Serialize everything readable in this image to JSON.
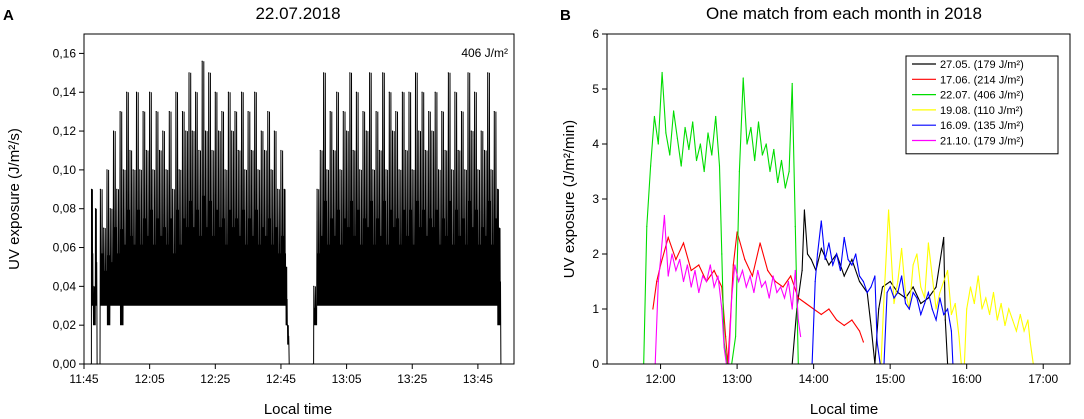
{
  "panels": [
    {
      "letter": "A",
      "title": "22.07.2018",
      "annotation": "406 J/m²",
      "xlabel": "Local time",
      "ylabel": "UV exposure (J/m²/s)"
    },
    {
      "letter": "B",
      "title": "One match from each month in 2018",
      "xlabel": "Local time",
      "ylabel": "UV exposure (J/m²/min)"
    }
  ],
  "chart_data": [
    {
      "type": "line",
      "title": "22.07.2018",
      "xlabel": "Local time",
      "ylabel": "UV exposure (J/m²/s)",
      "annotation": "406 J/m²",
      "x_unit": "minutes after 11:45",
      "xlim": [
        0,
        131
      ],
      "ylim": [
        0,
        0.17
      ],
      "x_ticks": [
        {
          "x": 0,
          "label": "11:45"
        },
        {
          "x": 20,
          "label": "12:05"
        },
        {
          "x": 40,
          "label": "12:25"
        },
        {
          "x": 60,
          "label": "12:45"
        },
        {
          "x": 80,
          "label": "13:05"
        },
        {
          "x": 100,
          "label": "13:25"
        },
        {
          "x": 120,
          "label": "13:45"
        }
      ],
      "y_ticks": [
        {
          "y": 0,
          "label": "0,00"
        },
        {
          "y": 0.02,
          "label": "0,02"
        },
        {
          "y": 0.04,
          "label": "0,04"
        },
        {
          "y": 0.06,
          "label": "0,06"
        },
        {
          "y": 0.08,
          "label": "0,08"
        },
        {
          "y": 0.1,
          "label": "0,10"
        },
        {
          "y": 0.12,
          "label": "0,12"
        },
        {
          "y": 0.14,
          "label": "0,14"
        },
        {
          "y": 0.16,
          "label": "0,16"
        }
      ],
      "color": "#000000",
      "series": [
        {
          "x": [
            2,
            2.3,
            2.8,
            3.5,
            4,
            5,
            6,
            7,
            8,
            9,
            10,
            11,
            12,
            13,
            14,
            15,
            16,
            17,
            18,
            19,
            20,
            21,
            22,
            23,
            24,
            25,
            26,
            27,
            28,
            29,
            30,
            31,
            32,
            33,
            34,
            35,
            36,
            37,
            38,
            39,
            40,
            41,
            42,
            43,
            44,
            45,
            46,
            47,
            48,
            49,
            50,
            51,
            52,
            53,
            54,
            55,
            56,
            57,
            58,
            59,
            60,
            61,
            61.5,
            62,
            62.5,
            69.5,
            70,
            71,
            72,
            73,
            74,
            75,
            76,
            77,
            78,
            79,
            80,
            81,
            82,
            83,
            84,
            85,
            86,
            87,
            88,
            89,
            90,
            91,
            92,
            93,
            94,
            95,
            96,
            97,
            98,
            99,
            100,
            101,
            102,
            103,
            104,
            105,
            106,
            107,
            108,
            109,
            110,
            111,
            112,
            113,
            114,
            115,
            116,
            117,
            118,
            119,
            120,
            121,
            122,
            123,
            124,
            125,
            126,
            126.5,
            127
          ],
          "y": [
            0.0,
            0.09,
            0.04,
            0.08,
            0.0,
            0.09,
            0.07,
            0.1,
            0.08,
            0.12,
            0.09,
            0.13,
            0.1,
            0.14,
            0.11,
            0.1,
            0.14,
            0.1,
            0.13,
            0.11,
            0.14,
            0.1,
            0.13,
            0.11,
            0.12,
            0.1,
            0.13,
            0.09,
            0.14,
            0.1,
            0.13,
            0.12,
            0.15,
            0.12,
            0.14,
            0.11,
            0.156,
            0.12,
            0.15,
            0.11,
            0.14,
            0.12,
            0.13,
            0.1,
            0.14,
            0.12,
            0.13,
            0.11,
            0.14,
            0.1,
            0.13,
            0.11,
            0.14,
            0.1,
            0.12,
            0.11,
            0.13,
            0.1,
            0.12,
            0.09,
            0.11,
            0.09,
            0.05,
            0.02,
            0.0,
            0.0,
            0.04,
            0.09,
            0.11,
            0.15,
            0.1,
            0.13,
            0.11,
            0.14,
            0.1,
            0.13,
            0.12,
            0.15,
            0.11,
            0.14,
            0.1,
            0.13,
            0.12,
            0.15,
            0.1,
            0.13,
            0.11,
            0.15,
            0.1,
            0.14,
            0.12,
            0.13,
            0.1,
            0.14,
            0.11,
            0.14,
            0.1,
            0.15,
            0.12,
            0.14,
            0.11,
            0.13,
            0.12,
            0.14,
            0.1,
            0.13,
            0.11,
            0.15,
            0.1,
            0.14,
            0.11,
            0.13,
            0.1,
            0.15,
            0.12,
            0.14,
            0.1,
            0.12,
            0.11,
            0.15,
            0.1,
            0.13,
            0.09,
            0.07,
            0.0
          ],
          "y_low": [
            0.0,
            0.03,
            0.02,
            0.03,
            0.0,
            0.03,
            0.03,
            0.02,
            0.03,
            0.03,
            0.03,
            0.02,
            0.03,
            0.03,
            0.03,
            0.03,
            0.03,
            0.03,
            0.03,
            0.03,
            0.03,
            0.03,
            0.03,
            0.03,
            0.03,
            0.03,
            0.03,
            0.03,
            0.03,
            0.03,
            0.03,
            0.03,
            0.03,
            0.03,
            0.03,
            0.03,
            0.03,
            0.03,
            0.03,
            0.03,
            0.03,
            0.03,
            0.03,
            0.03,
            0.03,
            0.03,
            0.03,
            0.03,
            0.03,
            0.03,
            0.03,
            0.03,
            0.03,
            0.03,
            0.03,
            0.03,
            0.03,
            0.03,
            0.03,
            0.03,
            0.03,
            0.03,
            0.02,
            0.01,
            0.0,
            0.0,
            0.02,
            0.03,
            0.03,
            0.03,
            0.03,
            0.03,
            0.03,
            0.03,
            0.03,
            0.03,
            0.03,
            0.03,
            0.03,
            0.03,
            0.03,
            0.03,
            0.03,
            0.03,
            0.03,
            0.03,
            0.03,
            0.03,
            0.03,
            0.03,
            0.03,
            0.03,
            0.03,
            0.03,
            0.03,
            0.03,
            0.03,
            0.03,
            0.03,
            0.03,
            0.03,
            0.03,
            0.03,
            0.03,
            0.03,
            0.03,
            0.03,
            0.03,
            0.03,
            0.03,
            0.03,
            0.03,
            0.03,
            0.03,
            0.03,
            0.03,
            0.03,
            0.03,
            0.03,
            0.03,
            0.03,
            0.03,
            0.02,
            0.02,
            0.0
          ]
        }
      ]
    },
    {
      "type": "line",
      "title": "One match from each month in 2018",
      "xlabel": "Local time",
      "ylabel": "UV exposure (J/m²/min)",
      "x_unit": "hour of day",
      "xlim": [
        11.3,
        17.35
      ],
      "ylim": [
        0,
        6
      ],
      "x_ticks": [
        {
          "x": 12,
          "label": "12:00"
        },
        {
          "x": 13,
          "label": "13:00"
        },
        {
          "x": 14,
          "label": "14:00"
        },
        {
          "x": 15,
          "label": "15:00"
        },
        {
          "x": 16,
          "label": "16:00"
        },
        {
          "x": 17,
          "label": "17:00"
        }
      ],
      "y_ticks": [
        {
          "y": 0,
          "label": "0"
        },
        {
          "y": 1,
          "label": "1"
        },
        {
          "y": 2,
          "label": "2"
        },
        {
          "y": 3,
          "label": "3"
        },
        {
          "y": 4,
          "label": "4"
        },
        {
          "y": 5,
          "label": "5"
        },
        {
          "y": 6,
          "label": "6"
        }
      ],
      "legend_position": "top-right",
      "series": [
        {
          "name": "27.05. (179 J/m²)",
          "color": "#000000",
          "x": [
            13.72,
            13.78,
            13.85,
            13.88,
            13.92,
            13.97,
            14.03,
            14.1,
            14.2,
            14.3,
            14.4,
            14.5,
            14.6,
            14.7,
            14.75,
            14.8,
            14.85,
            14.9,
            15.0,
            15.1,
            15.2,
            15.3,
            15.4,
            15.5,
            15.6,
            15.7,
            15.72,
            15.75
          ],
          "y": [
            0.0,
            1.0,
            1.7,
            2.8,
            2.0,
            1.9,
            1.7,
            2.1,
            1.8,
            2.0,
            1.6,
            1.9,
            1.5,
            1.3,
            0.7,
            0.0,
            1.0,
            1.4,
            1.5,
            1.3,
            1.2,
            1.4,
            1.1,
            1.2,
            1.4,
            2.3,
            0.8,
            0.0
          ]
        },
        {
          "name": "17.06. (214 J/m²)",
          "color": "#ff0000",
          "x": [
            11.9,
            11.95,
            12.0,
            12.1,
            12.2,
            12.3,
            12.4,
            12.5,
            12.6,
            12.7,
            12.8,
            12.85,
            12.88,
            12.92,
            12.95,
            13.0,
            13.1,
            13.2,
            13.3,
            13.4,
            13.5,
            13.6,
            13.7,
            13.8,
            13.9,
            14.0,
            14.1,
            14.2,
            14.3,
            14.4,
            14.5,
            14.6,
            14.65
          ],
          "y": [
            1.0,
            1.5,
            1.8,
            2.3,
            1.9,
            2.2,
            1.7,
            1.8,
            1.5,
            1.7,
            1.4,
            0.5,
            0.0,
            1.0,
            1.8,
            2.4,
            1.9,
            1.6,
            2.2,
            1.7,
            1.5,
            1.4,
            1.6,
            1.2,
            1.1,
            1.0,
            0.9,
            1.0,
            0.8,
            0.7,
            0.8,
            0.6,
            0.4
          ]
        },
        {
          "name": "22.07. (406 J/m²)",
          "color": "#00dd00",
          "x": [
            11.78,
            11.82,
            11.87,
            11.92,
            11.97,
            12.02,
            12.07,
            12.12,
            12.17,
            12.22,
            12.27,
            12.32,
            12.37,
            12.42,
            12.47,
            12.52,
            12.57,
            12.62,
            12.67,
            12.72,
            12.77,
            12.8,
            12.83,
            12.87,
            12.93,
            12.98,
            13.03,
            13.08,
            13.13,
            13.18,
            13.23,
            13.28,
            13.33,
            13.38,
            13.43,
            13.48,
            13.53,
            13.58,
            13.63,
            13.68,
            13.72,
            13.76,
            13.8
          ],
          "y": [
            0.0,
            2.5,
            3.6,
            4.5,
            4.0,
            5.3,
            4.2,
            3.8,
            4.6,
            4.1,
            3.6,
            4.3,
            3.9,
            4.4,
            3.7,
            4.0,
            3.5,
            4.2,
            3.8,
            4.5,
            3.6,
            2.0,
            0.4,
            0.0,
            0.0,
            0.5,
            3.5,
            5.2,
            4.0,
            4.3,
            3.7,
            4.4,
            3.8,
            4.0,
            3.5,
            3.9,
            3.3,
            3.7,
            3.2,
            3.5,
            5.1,
            2.5,
            0.0
          ]
        },
        {
          "name": "19.08. (110 J/m²)",
          "color": "#ffff00",
          "x": [
            14.88,
            14.92,
            14.98,
            15.05,
            15.1,
            15.15,
            15.2,
            15.25,
            15.3,
            15.35,
            15.4,
            15.45,
            15.5,
            15.55,
            15.6,
            15.65,
            15.7,
            15.75,
            15.8,
            15.85,
            15.9,
            15.93,
            15.97,
            16.0,
            16.05,
            16.1,
            16.15,
            16.2,
            16.25,
            16.3,
            16.35,
            16.4,
            16.45,
            16.5,
            16.55,
            16.6,
            16.65,
            16.7,
            16.75,
            16.8,
            16.83,
            16.87
          ],
          "y": [
            0.0,
            1.2,
            2.8,
            1.1,
            1.5,
            2.1,
            1.3,
            1.0,
            1.8,
            2.0,
            1.4,
            1.2,
            2.2,
            1.6,
            1.0,
            1.3,
            1.5,
            1.7,
            0.9,
            1.1,
            0.5,
            0.0,
            0.0,
            1.0,
            1.4,
            1.1,
            1.6,
            1.0,
            1.2,
            0.9,
            1.3,
            0.8,
            1.1,
            0.7,
            1.0,
            0.8,
            0.6,
            0.9,
            0.6,
            0.8,
            0.4,
            0.0
          ]
        },
        {
          "name": "16.09. (135 J/m²)",
          "color": "#0000ff",
          "x": [
            13.98,
            14.02,
            14.05,
            14.1,
            14.15,
            14.2,
            14.25,
            14.3,
            14.35,
            14.4,
            14.45,
            14.5,
            14.55,
            14.6,
            14.65,
            14.7,
            14.75,
            14.8,
            14.83,
            14.87,
            14.92,
            14.96,
            15.0,
            15.05,
            15.1,
            15.15,
            15.2,
            15.25,
            15.3,
            15.35,
            15.4,
            15.45,
            15.5,
            15.55,
            15.6,
            15.65,
            15.7,
            15.75,
            15.8,
            15.82
          ],
          "y": [
            0.0,
            1.5,
            2.0,
            2.6,
            1.9,
            2.2,
            1.8,
            2.0,
            1.7,
            2.3,
            1.9,
            1.8,
            2.0,
            1.6,
            1.5,
            1.3,
            1.4,
            1.6,
            0.4,
            0.0,
            0.0,
            1.3,
            1.4,
            1.2,
            1.3,
            1.6,
            1.1,
            1.0,
            1.3,
            1.2,
            0.9,
            1.1,
            1.3,
            1.0,
            0.8,
            1.2,
            0.9,
            1.0,
            0.6,
            0.0
          ]
        },
        {
          "name": "21.10. (179 J/m²)",
          "color": "#ff00ff",
          "x": [
            11.93,
            11.97,
            12.0,
            12.05,
            12.1,
            12.15,
            12.2,
            12.25,
            12.3,
            12.35,
            12.4,
            12.45,
            12.5,
            12.55,
            12.6,
            12.65,
            12.7,
            12.75,
            12.8,
            12.83,
            12.86,
            12.89,
            12.93,
            12.97,
            13.02,
            13.07,
            13.12,
            13.17,
            13.22,
            13.27,
            13.32,
            13.37,
            13.42,
            13.47,
            13.52,
            13.57,
            13.62,
            13.67,
            13.72,
            13.76,
            13.8,
            13.83
          ],
          "y": [
            0.0,
            1.5,
            1.9,
            2.7,
            1.6,
            2.0,
            1.7,
            1.9,
            1.5,
            1.8,
            1.4,
            1.7,
            1.3,
            1.6,
            1.5,
            1.8,
            1.4,
            1.6,
            1.0,
            0.3,
            0.0,
            0.0,
            1.2,
            1.8,
            1.5,
            1.7,
            1.4,
            1.6,
            1.3,
            1.7,
            1.4,
            1.5,
            1.2,
            1.6,
            1.3,
            1.4,
            1.2,
            1.5,
            1.0,
            1.7,
            0.8,
            0.5
          ]
        }
      ]
    }
  ]
}
